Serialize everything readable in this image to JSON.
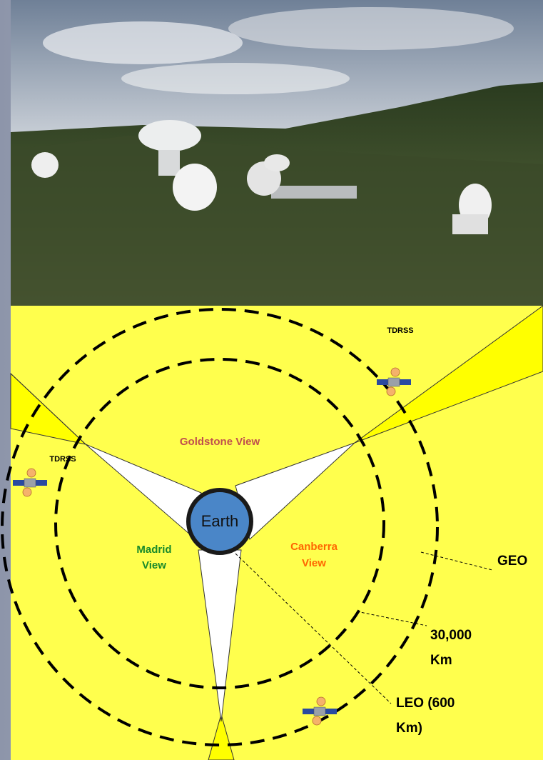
{
  "diagram": {
    "earth": "Earth",
    "goldstone_view": "Goldstone View",
    "madrid_view": [
      "Madrid",
      "View"
    ],
    "canberra_view": [
      "Canberra",
      "View"
    ],
    "satellites": [
      "TDRSS",
      "TDRSS"
    ],
    "geo": "GEO",
    "altitude_30000": [
      "30,000",
      "Km"
    ],
    "leo": [
      "LEO (600",
      "Km)"
    ]
  }
}
